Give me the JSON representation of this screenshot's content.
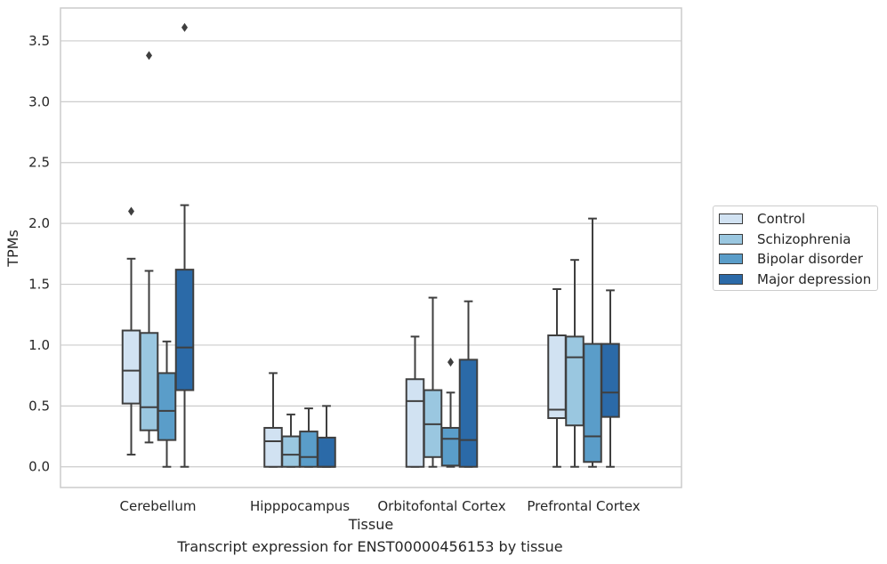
{
  "caption": "Transcript expression for ENST00000456153 by tissue",
  "chart_data": {
    "type": "box",
    "xlabel": "Tissue",
    "ylabel": "TPMs",
    "ylim": [
      -0.17,
      3.77
    ],
    "yticks": [
      "0.0",
      "0.5",
      "1.0",
      "1.5",
      "2.0",
      "2.5",
      "3.0",
      "3.5"
    ],
    "ytick_values": [
      0,
      0.5,
      1.0,
      1.5,
      2.0,
      2.5,
      3.0,
      3.5
    ],
    "grid": "horizontal",
    "legend_position": "right",
    "categories": [
      "Cerebellum",
      "Hipppocampus",
      "Orbitofontal Cortex",
      "Prefrontal Cortex"
    ],
    "series": [
      {
        "name": "Control",
        "color": "#d1e2f2",
        "boxes": [
          {
            "whislo": 0.1,
            "q1": 0.52,
            "med": 0.79,
            "q3": 1.12,
            "whishi": 1.71,
            "fliers": [
              2.1
            ]
          },
          {
            "whislo": 0.0,
            "q1": 0.0,
            "med": 0.21,
            "q3": 0.32,
            "whishi": 0.77,
            "fliers": []
          },
          {
            "whislo": 0.0,
            "q1": 0.0,
            "med": 0.54,
            "q3": 0.72,
            "whishi": 1.07,
            "fliers": []
          },
          {
            "whislo": 0.0,
            "q1": 0.4,
            "med": 0.47,
            "q3": 1.08,
            "whishi": 1.46,
            "fliers": []
          }
        ]
      },
      {
        "name": "Schizophrenia",
        "color": "#9ac7e0",
        "boxes": [
          {
            "whislo": 0.2,
            "q1": 0.3,
            "med": 0.49,
            "q3": 1.1,
            "whishi": 1.61,
            "fliers": [
              3.38
            ]
          },
          {
            "whislo": 0.0,
            "q1": 0.0,
            "med": 0.1,
            "q3": 0.25,
            "whishi": 0.43,
            "fliers": []
          },
          {
            "whislo": 0.0,
            "q1": 0.08,
            "med": 0.35,
            "q3": 0.63,
            "whishi": 1.39,
            "fliers": []
          },
          {
            "whislo": 0.0,
            "q1": 0.34,
            "med": 0.9,
            "q3": 1.07,
            "whishi": 1.7,
            "fliers": []
          }
        ]
      },
      {
        "name": "Bipolar disorder",
        "color": "#5a9dc9",
        "boxes": [
          {
            "whislo": 0.0,
            "q1": 0.22,
            "med": 0.46,
            "q3": 0.77,
            "whishi": 1.03,
            "fliers": []
          },
          {
            "whislo": 0.0,
            "q1": 0.0,
            "med": 0.08,
            "q3": 0.29,
            "whishi": 0.48,
            "fliers": []
          },
          {
            "whislo": 0.0,
            "q1": 0.01,
            "med": 0.23,
            "q3": 0.32,
            "whishi": 0.61,
            "fliers": [
              0.86
            ]
          },
          {
            "whislo": 0.0,
            "q1": 0.04,
            "med": 0.25,
            "q3": 1.01,
            "whishi": 2.04,
            "fliers": []
          }
        ]
      },
      {
        "name": "Major depression",
        "color": "#2b6aa8",
        "boxes": [
          {
            "whislo": 0.0,
            "q1": 0.63,
            "med": 0.98,
            "q3": 1.62,
            "whishi": 2.15,
            "fliers": [
              3.61
            ]
          },
          {
            "whislo": 0.0,
            "q1": 0.0,
            "med": 0.0,
            "q3": 0.24,
            "whishi": 0.5,
            "fliers": []
          },
          {
            "whislo": 0.0,
            "q1": 0.0,
            "med": 0.22,
            "q3": 0.88,
            "whishi": 1.36,
            "fliers": []
          },
          {
            "whislo": 0.0,
            "q1": 0.41,
            "med": 0.61,
            "q3": 1.01,
            "whishi": 1.45,
            "fliers": []
          }
        ]
      }
    ]
  }
}
